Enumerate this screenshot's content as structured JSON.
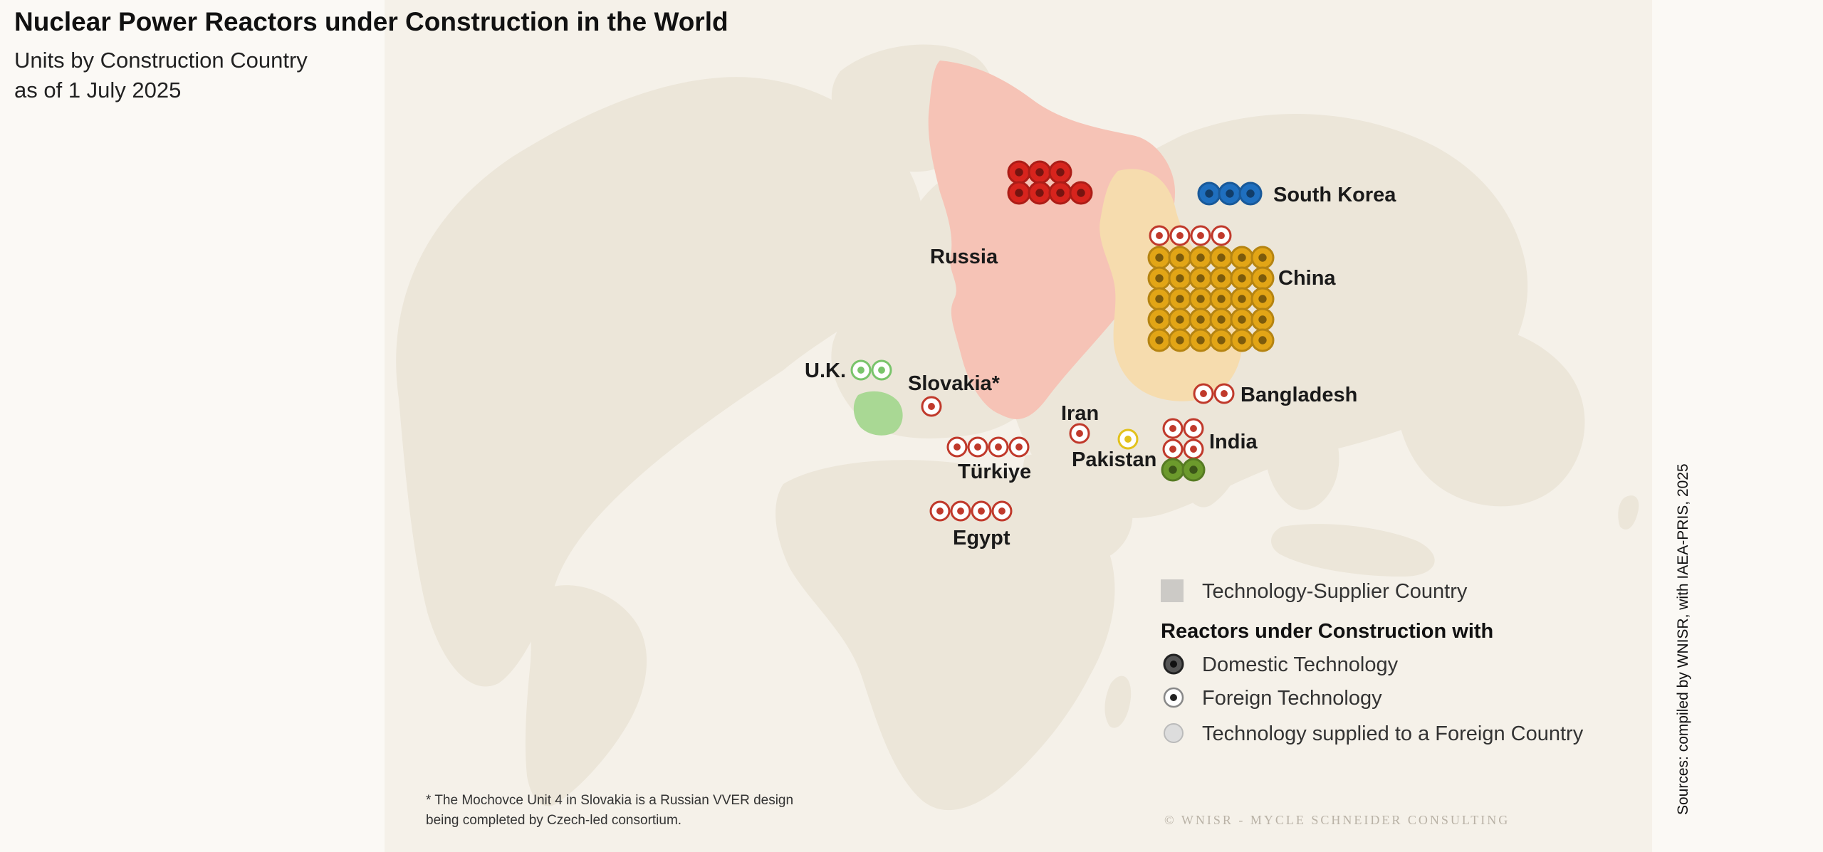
{
  "title": "Nuclear Power Reactors under Construction in the World",
  "subtitle_line1": "Units by Construction Country",
  "subtitle_line2": "as of 1 July 2025",
  "countries": {
    "russia": {
      "label": "Russia",
      "domestic_units": 7,
      "color": "#d7241d"
    },
    "south_korea": {
      "label": "South Korea",
      "domestic_units": 3,
      "color": "#1f6fbf"
    },
    "china": {
      "label": "China",
      "domestic_units": 30,
      "foreign_units": 4,
      "color": "#e2a516"
    },
    "uk": {
      "label": "U.K.",
      "foreign_units": 2,
      "color": "#79c46b"
    },
    "slovakia": {
      "label": "Slovakia*",
      "foreign_units": 1
    },
    "turkiye": {
      "label": "Türkiye",
      "foreign_units": 4
    },
    "egypt": {
      "label": "Egypt",
      "foreign_units": 4
    },
    "iran": {
      "label": "Iran",
      "foreign_units": 1
    },
    "pakistan": {
      "label": "Pakistan",
      "foreign_units": 1
    },
    "bangladesh": {
      "label": "Bangladesh",
      "foreign_units": 2
    },
    "india": {
      "label": "India",
      "foreign_units": 4,
      "domestic_units": 2,
      "color": "#6c9a2c"
    }
  },
  "legend": {
    "supplier": "Technology-Supplier Country",
    "heading": "Reactors under Construction with",
    "domestic": "Domestic Technology",
    "foreign": "Foreign Technology",
    "supplied": "Technology supplied to a Foreign Country"
  },
  "footnote_line1": "* The Mochovce Unit 4 in Slovakia is a Russian VVER design",
  "footnote_line2": "being completed by Czech-led consortium.",
  "copyright": "© WNISR - MYCLE SCHNEIDER CONSULTING",
  "source": "Sources: compiled by WNISR, with IAEA-PRIS, 2025",
  "colors": {
    "land": "#ece6d9",
    "russia_fill": "#f6c3b6",
    "china_fill": "#f6dcae",
    "france_fill": "#a9d894",
    "foreign_dot": "#c0392b",
    "pakistan_dot": "#e2c21d"
  }
}
